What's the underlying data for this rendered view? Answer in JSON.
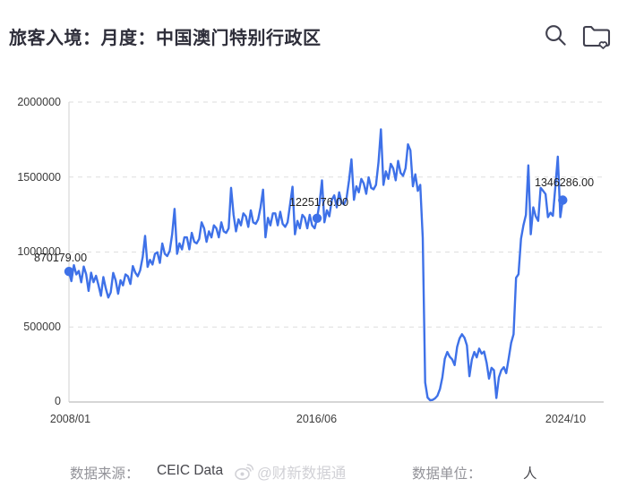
{
  "header": {
    "title": "旅客入境：月度：中国澳门特别行政区",
    "search_icon": "search-icon",
    "collect_icon": "folder-heart-icon"
  },
  "chart_data": {
    "type": "line",
    "title": "旅客入境：月度：中国澳门特别行政区",
    "unit": "人",
    "x_start": "2008/01",
    "x_end": "2024/10",
    "x_frequency": "monthly",
    "x_tick_labels": [
      "2008/01",
      "2016/06",
      "2024/10"
    ],
    "y_ticks": [
      2000000,
      1500000,
      1000000,
      500000,
      0
    ],
    "y_tick_labels": [
      "2000000",
      "1500000",
      "1000000",
      "500000",
      "0"
    ],
    "ylim": [
      0,
      2000000
    ],
    "grid": "dashed-horizontal",
    "legend": "none",
    "line_color": "#3e71e8",
    "values": [
      870179,
      806000,
      912000,
      851000,
      874000,
      798000,
      903000,
      852000,
      741000,
      862000,
      799000,
      842000,
      781000,
      708000,
      833000,
      758000,
      697000,
      731000,
      861000,
      812000,
      722000,
      812000,
      778000,
      851000,
      838000,
      787000,
      906000,
      862000,
      838000,
      878000,
      966000,
      1108000,
      901000,
      948000,
      917000,
      988000,
      998000,
      928000,
      1057000,
      988000,
      973000,
      1008000,
      1118000,
      1288000,
      988000,
      1058000,
      1018000,
      1098000,
      1098000,
      1018000,
      1128000,
      1068000,
      1058000,
      1088000,
      1198000,
      1158000,
      1068000,
      1138000,
      1098000,
      1178000,
      1158000,
      1098000,
      1198000,
      1138000,
      1128000,
      1158000,
      1428000,
      1248000,
      1138000,
      1218000,
      1178000,
      1258000,
      1238000,
      1168000,
      1278000,
      1198000,
      1188000,
      1218000,
      1298000,
      1416000,
      1098000,
      1228000,
      1178000,
      1258000,
      1258000,
      1178000,
      1268000,
      1188000,
      1168000,
      1198000,
      1318000,
      1435000,
      1118000,
      1208000,
      1158000,
      1248000,
      1228000,
      1158000,
      1248000,
      1178000,
      1158000,
      1225176,
      1328000,
      1478000,
      1198000,
      1278000,
      1238000,
      1348000,
      1378000,
      1298000,
      1398000,
      1328000,
      1318000,
      1358000,
      1478000,
      1618000,
      1348000,
      1438000,
      1398000,
      1488000,
      1458000,
      1388000,
      1498000,
      1428000,
      1418000,
      1448000,
      1598000,
      1818000,
      1448000,
      1538000,
      1488000,
      1588000,
      1558000,
      1478000,
      1608000,
      1528000,
      1508000,
      1558000,
      1718000,
      1678000,
      1438000,
      1518000,
      1408000,
      1448000,
      1095000,
      130000,
      30000,
      12000,
      14000,
      24000,
      42000,
      86000,
      164000,
      288000,
      334000,
      302000,
      284000,
      246000,
      368000,
      424000,
      452000,
      428000,
      378000,
      172000,
      282000,
      334000,
      298000,
      356000,
      322000,
      336000,
      262000,
      156000,
      228000,
      212000,
      27000,
      164000,
      212000,
      232000,
      192000,
      292000,
      394000,
      452000,
      828000,
      852000,
      1088000,
      1178000,
      1248000,
      1578000,
      1118000,
      1298000,
      1238000,
      1208000,
      1428000,
      1408000,
      1386000,
      1232000,
      1262000,
      1242000,
      1438000,
      1636000,
      1232000,
      1346286
    ],
    "labeled_points": [
      {
        "index": 0,
        "x": "2008/01",
        "value": 870179,
        "label": "870179.00"
      },
      {
        "index": 101,
        "x": "2016/06",
        "value": 1225176,
        "label": "1225176.00"
      },
      {
        "index": 201,
        "x": "2024/10",
        "value": 1346286,
        "label": "1346286.00"
      }
    ]
  },
  "footer": {
    "source_label": "数据来源：",
    "source_value": "CEIC Data",
    "unit_label": "数据单位：",
    "unit_value": "人",
    "watermark": "@财新数据通",
    "watermark_icon": "weibo-icon"
  }
}
